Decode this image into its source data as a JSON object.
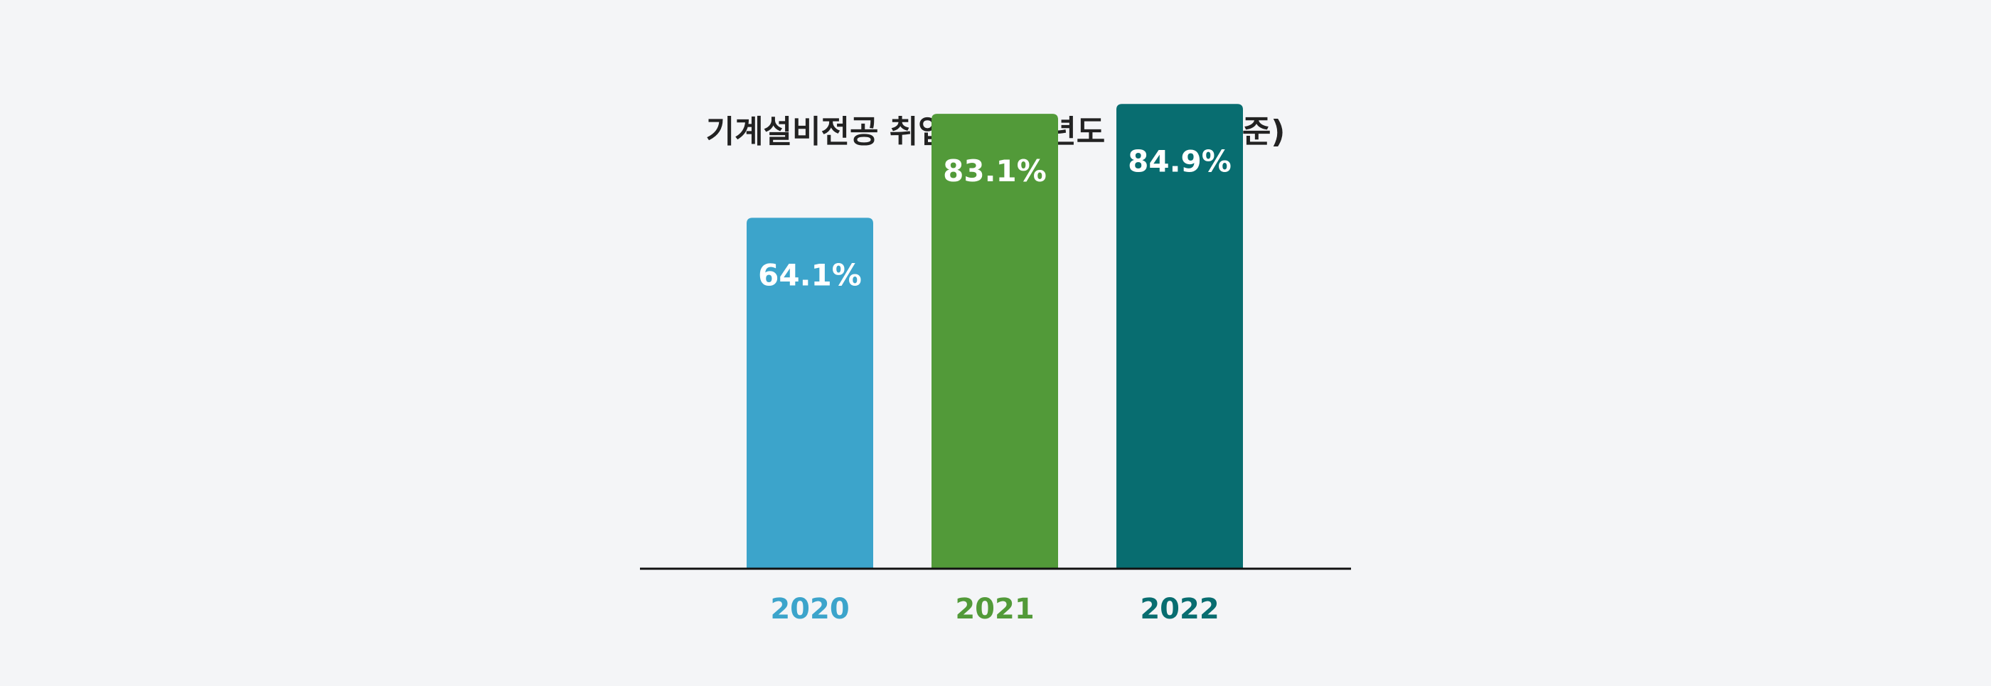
{
  "chart_data": {
    "type": "bar",
    "title": "기계설비전공 취업률(해당년도 졸업생 기준)",
    "categories": [
      "2020",
      "2021",
      "2022"
    ],
    "values": [
      64.1,
      83.1,
      84.9
    ],
    "value_labels": [
      "64.1%",
      "83.1%",
      "84.9%"
    ],
    "colors": [
      "#3ca4cb",
      "#529a39",
      "#086d70"
    ],
    "title_color": "#222222",
    "value_label_color": "#ffffff",
    "axis_color": "#111111",
    "xlabel": "",
    "ylabel": "",
    "grid": false,
    "legend": "none"
  }
}
